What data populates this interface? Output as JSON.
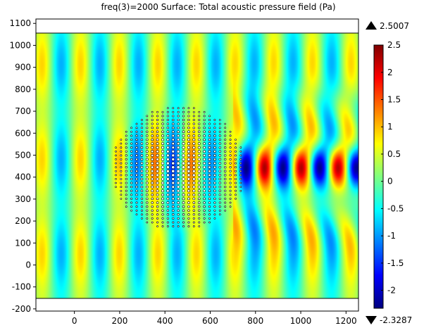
{
  "title": "freq(3)=2000   Surface: Total acoustic pressure field (Pa)",
  "colorbar": {
    "max_label": "2.5007",
    "min_label": "-2.3287",
    "max_value": 2.5007,
    "min_value": -2.3287,
    "colormap": "jet",
    "colors": [
      "#00007f",
      "#0000ff",
      "#007fff",
      "#00ffff",
      "#7fff7f",
      "#ffff00",
      "#ff7f00",
      "#ff0000",
      "#7f0000"
    ],
    "ticks": [
      "2.5",
      "2",
      "1.5",
      "1",
      "0.5",
      "0",
      "-0.5",
      "-1",
      "-1.5",
      "-2"
    ]
  },
  "chart_data": {
    "type": "heatmap",
    "title": "freq(3)=2000   Surface: Total acoustic pressure field (Pa)",
    "xlabel": "",
    "ylabel": "",
    "xlim": [
      -170,
      1255
    ],
    "ylim": [
      -210,
      1120
    ],
    "x_ticks": [
      "0",
      "200",
      "400",
      "600",
      "800",
      "1000",
      "1200"
    ],
    "y_ticks": [
      "1100",
      "1000",
      "900",
      "800",
      "700",
      "600",
      "500",
      "400",
      "300",
      "200",
      "100",
      "0",
      "-100",
      "-200"
    ],
    "domain": {
      "x": [
        -170,
        1255
      ],
      "y": [
        -150,
        1050
      ]
    },
    "field_range": [
      -2.3287,
      2.5007
    ],
    "wave_lobes": [
      {
        "x": 840,
        "y": 440,
        "value": 2.5
      },
      {
        "x": 930,
        "y": 440,
        "value": -2.3
      },
      {
        "x": 1020,
        "y": 440,
        "value": 2.4
      },
      {
        "x": 1110,
        "y": 440,
        "value": -2.2
      },
      {
        "x": 1200,
        "y": 440,
        "value": 2.3
      }
    ],
    "scatterer_cluster": {
      "center": [
        460,
        440
      ],
      "radius": 300
    },
    "grid": false,
    "colorbar": "right"
  }
}
